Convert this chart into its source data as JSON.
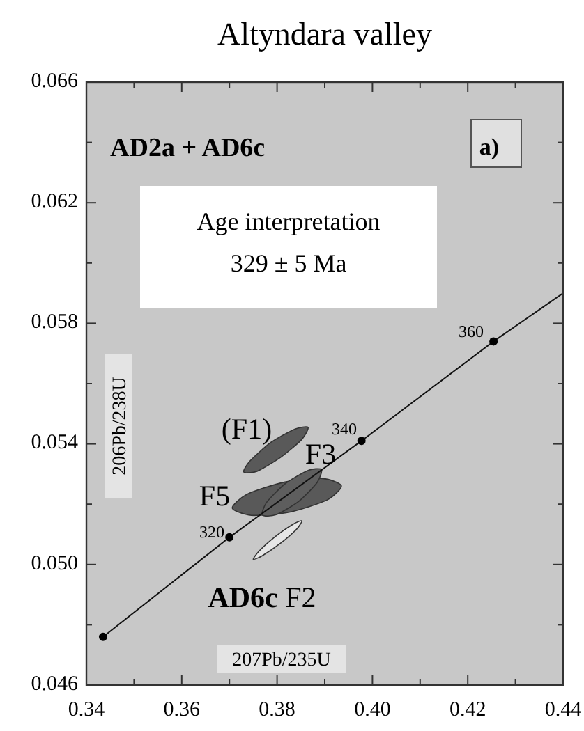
{
  "chart_data": {
    "type": "line",
    "title": "Altyndara valley",
    "xlabel": "207Pb/235U",
    "ylabel": "206Pb/238U",
    "xlim": [
      0.34,
      0.44
    ],
    "ylim": [
      0.046,
      0.066
    ],
    "xticks": [
      0.34,
      {
        "value": 0.35,
        "label": null
      },
      0.36,
      {
        "value": 0.37,
        "label": null
      },
      0.38,
      {
        "value": 0.39,
        "label": null
      },
      {
        "value": 0.4,
        "label": "0.40"
      },
      {
        "value": 0.41,
        "label": null
      },
      0.42,
      {
        "value": 0.43,
        "label": null
      },
      0.44
    ],
    "yticks": [
      0.046,
      {
        "value": 0.048,
        "label": null
      },
      {
        "value": 0.05,
        "label": "0.050"
      },
      {
        "value": 0.052,
        "label": null
      },
      0.054,
      {
        "value": 0.056,
        "label": null
      },
      0.058,
      {
        "value": 0.06,
        "label": null
      },
      0.062,
      {
        "value": 0.064,
        "label": null
      },
      0.066
    ],
    "grid": false,
    "series": [
      {
        "type": "area",
        "color": "#595959",
        "x": [
          0.3865,
          0.3837,
          0.3787,
          0.3743,
          0.373,
          0.3758,
          0.3808,
          0.3852
        ],
        "values": [
          0.05455,
          0.05449,
          0.05405,
          0.05343,
          0.05307,
          0.05309,
          0.05356,
          0.05415
        ]
      },
      {
        "type": "area",
        "color": "#595959",
        "x": [
          0.3706,
          0.3746,
          0.3827,
          0.3905,
          0.3935,
          0.3896,
          0.3815,
          0.3737
        ],
        "values": [
          0.05187,
          0.05163,
          0.05174,
          0.05214,
          0.05261,
          0.05285,
          0.05273,
          0.05233
        ]
      },
      {
        "type": "area",
        "color": "#5e5e5e",
        "x": [
          0.3769,
          0.3798,
          0.3846,
          0.3884,
          0.3893,
          0.3865,
          0.3817,
          0.3778
        ],
        "values": [
          0.05164,
          0.05165,
          0.0521,
          0.05272,
          0.05315,
          0.05312,
          0.05268,
          0.05206
        ]
      },
      {
        "type": "area",
        "color": "#e6e6e6",
        "x": [
          0.375,
          0.3769,
          0.3807,
          0.3841,
          0.3852,
          0.3833,
          0.3796,
          0.3762
        ],
        "values": [
          0.05017,
          0.05029,
          0.0507,
          0.05117,
          0.05145,
          0.05133,
          0.05092,
          0.05044
        ]
      },
      {
        "color": "#111111",
        "x": [
          0.3435,
          0.37,
          0.3977,
          0.4254,
          0.44
        ],
        "values": [
          0.0476,
          0.0509,
          0.0541,
          0.0574,
          0.059
        ]
      },
      {
        "type": "scatter",
        "color": "#000000",
        "x": [
          0.3435,
          0.37,
          0.3977,
          0.4254
        ],
        "values": [
          0.0476,
          0.0509,
          0.0541,
          0.0574
        ]
      }
    ],
    "annotations": [
      "AD2a + AD6c",
      "a)",
      "Age interpretation\n329 ± 5 Ma",
      "(F1)",
      "F3",
      "F5",
      "320",
      "340",
      "360",
      "AD6c F2"
    ]
  }
}
